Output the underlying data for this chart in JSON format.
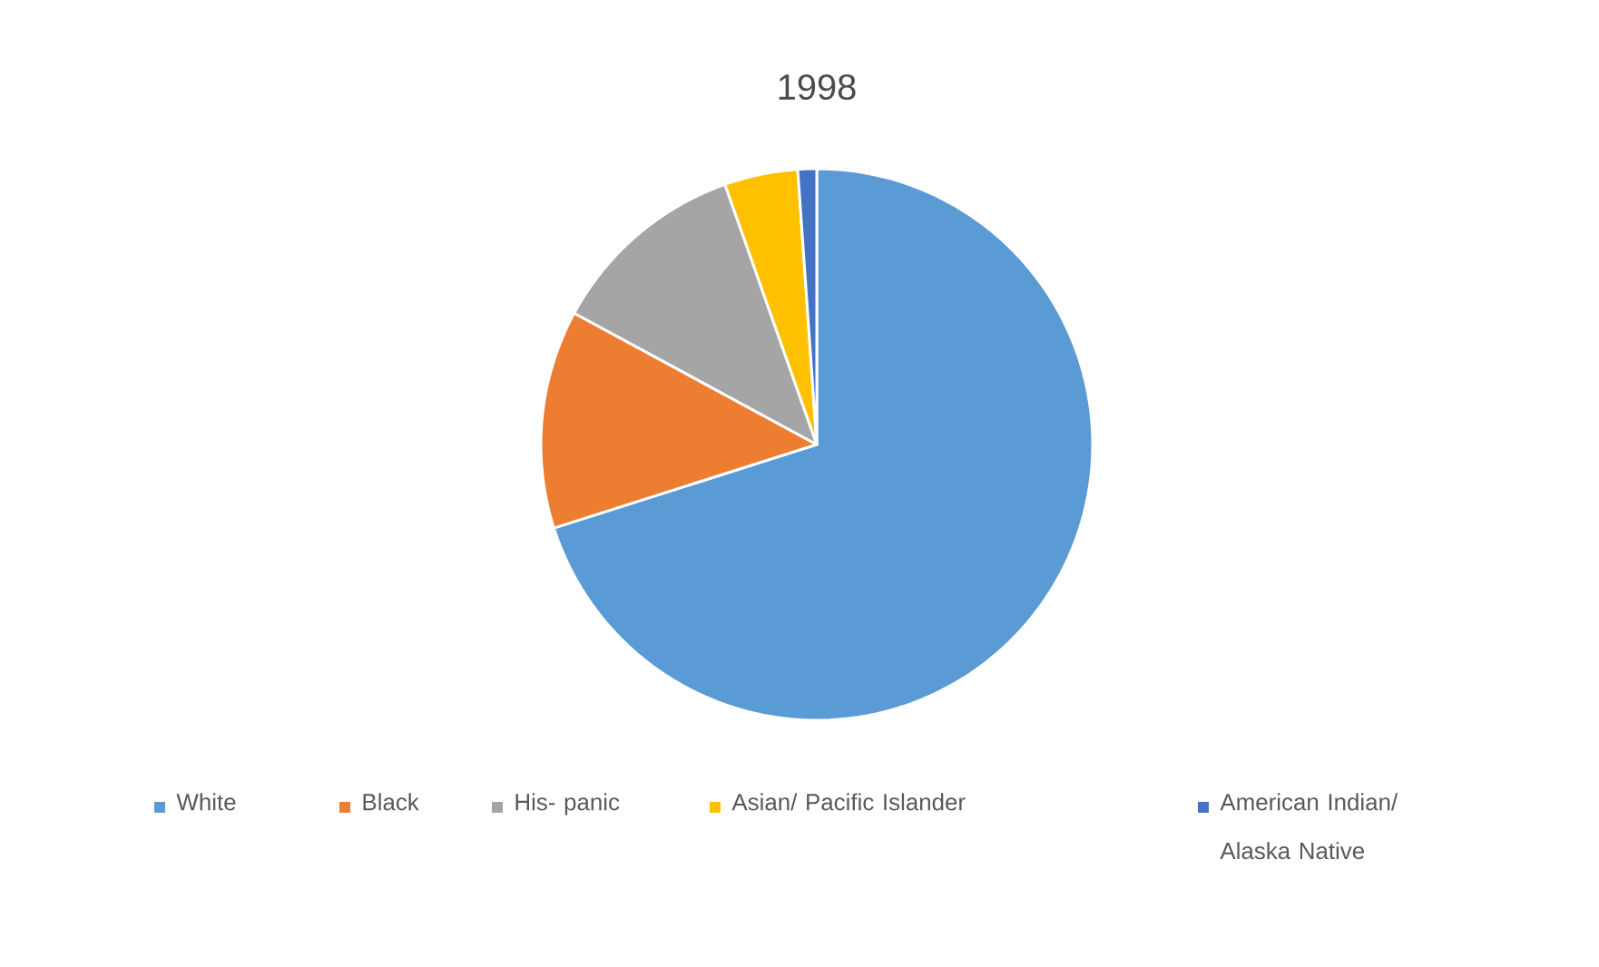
{
  "chart_data": {
    "type": "pie",
    "title": "1998",
    "categories": [
      "White",
      "Black",
      "His- panic",
      "Asian/ Pacific Islander",
      "American Indian/ Alaska Native"
    ],
    "values": [
      70.1,
      12.8,
      11.7,
      4.3,
      1.1
    ],
    "colors": [
      "#5b9bd5",
      "#ed7d31",
      "#a5a5a5",
      "#ffc000",
      "#4472c4"
    ],
    "legend": "bottom"
  }
}
